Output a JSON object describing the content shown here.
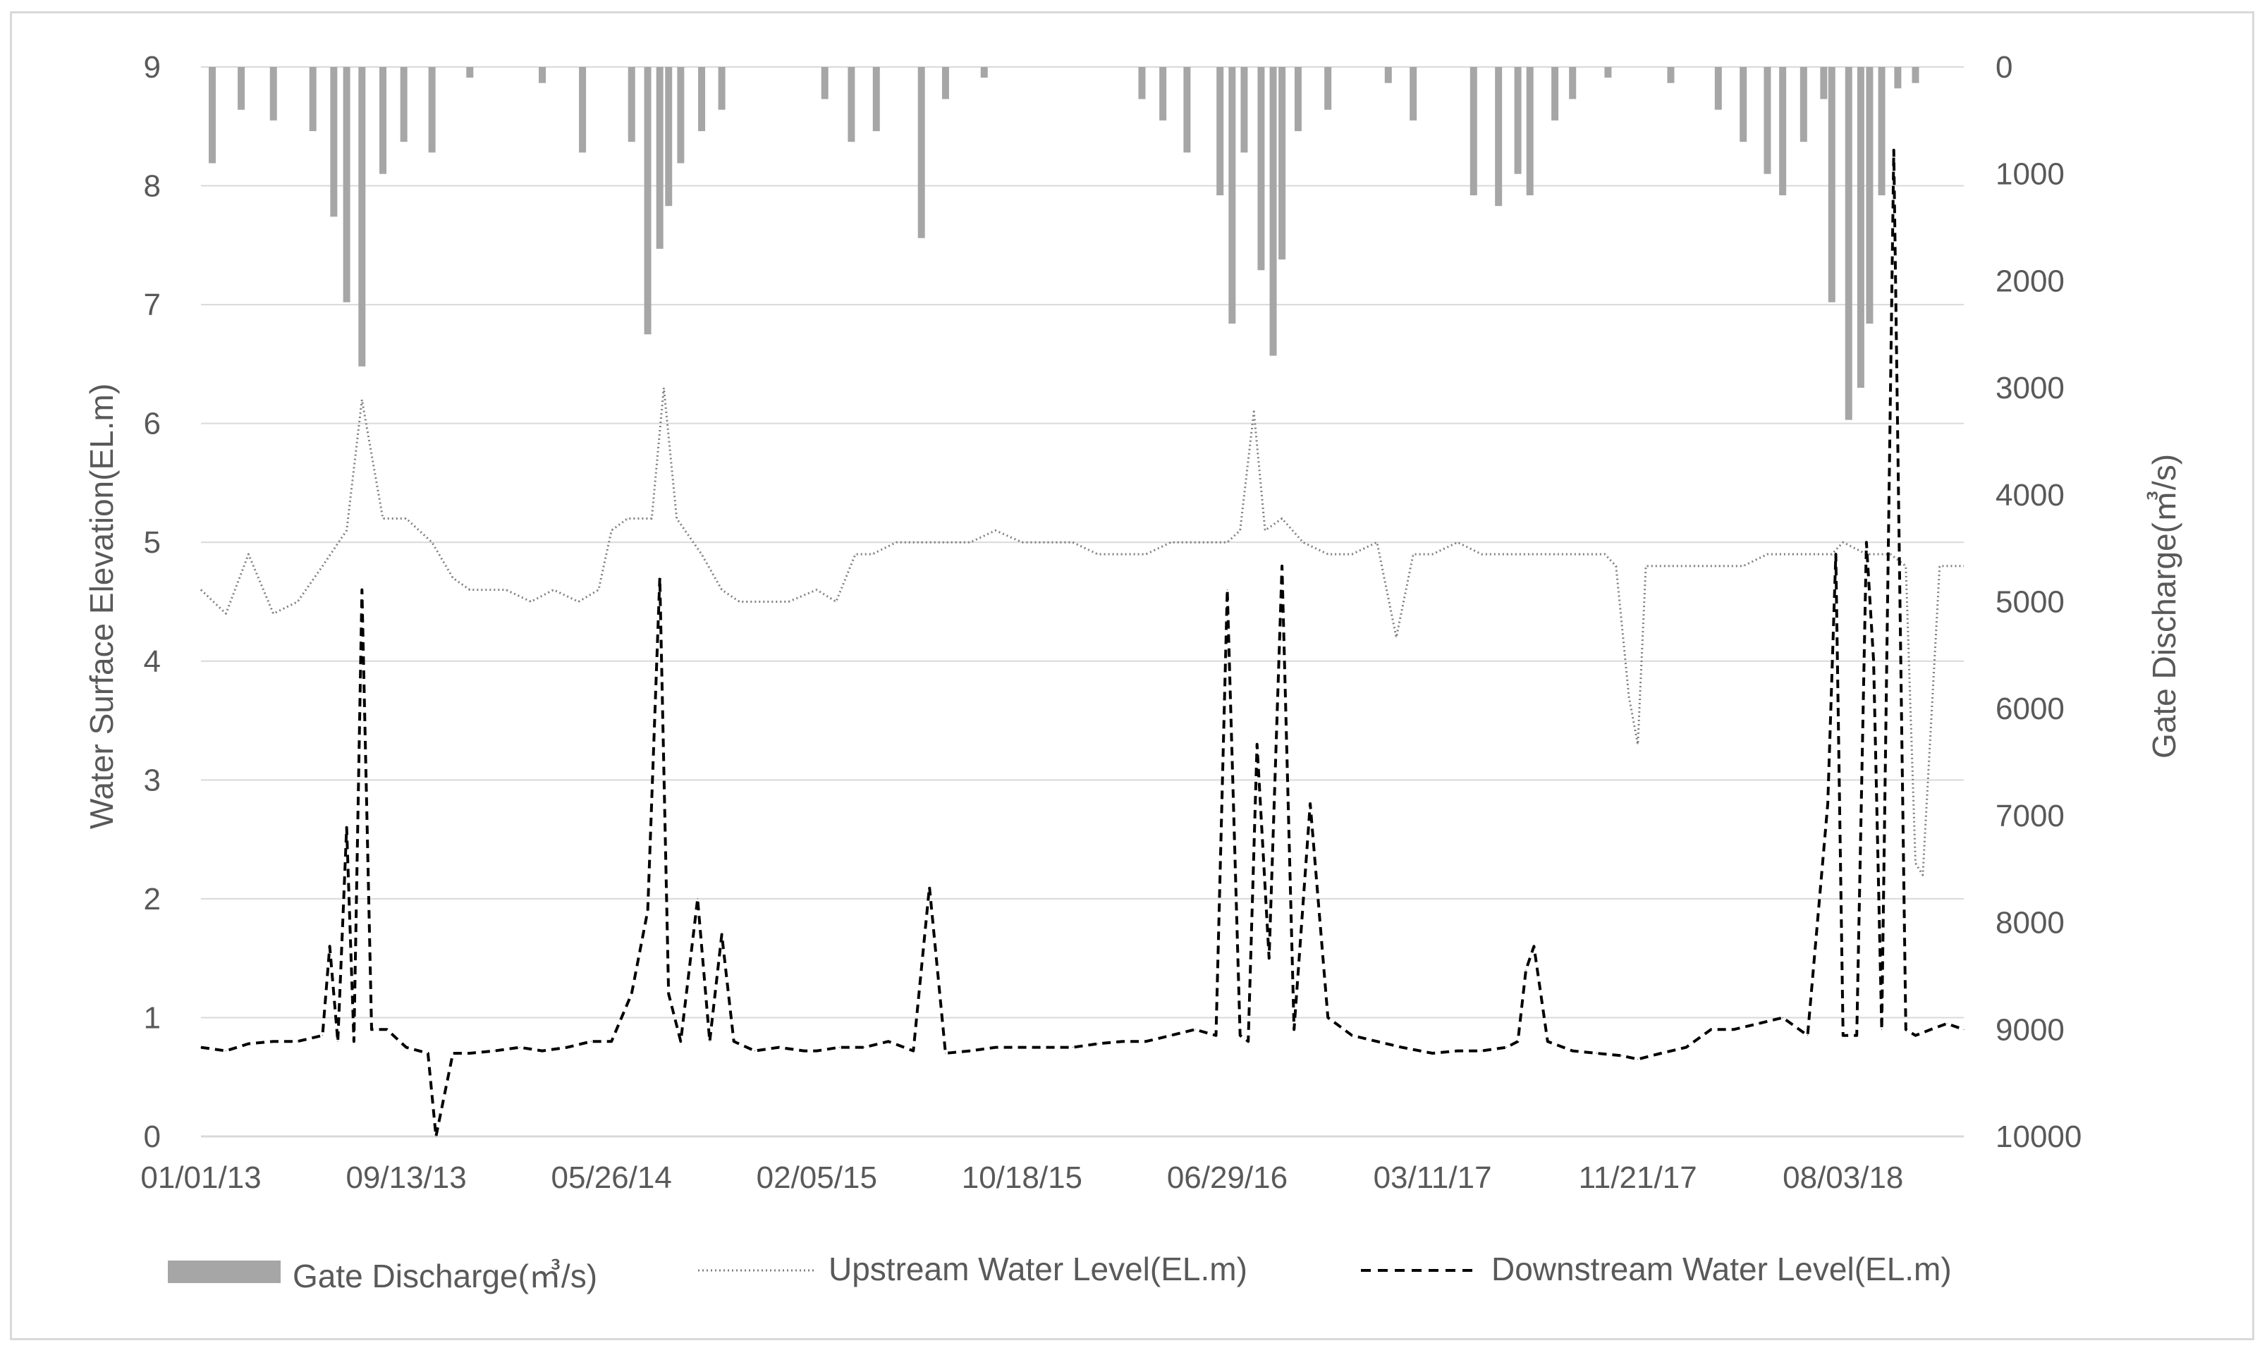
{
  "chart_data": {
    "type": "combo",
    "title": "",
    "x_dates": [
      "2013-01-01",
      "2013-09-13",
      "2014-05-26",
      "2015-02-05",
      "2015-10-18",
      "2016-06-29",
      "2017-03-11",
      "2017-11-21",
      "2018-08-03"
    ],
    "x_tick_labels": [
      "01/01/13",
      "09/13/13",
      "05/26/14",
      "02/05/15",
      "10/18/15",
      "06/29/16",
      "03/11/17",
      "11/21/17",
      "08/03/18"
    ],
    "x_range": [
      "2013-01-01",
      "2018-12-31"
    ],
    "ylabel_left": "Water Surface Elevation(EL.m)",
    "ylabel_right": "Gate Discharge(㎥/s)",
    "ylim_left": [
      0,
      9
    ],
    "ylim_right": [
      0,
      10000
    ],
    "right_axis_reversed": true,
    "y_left_ticks": [
      "0",
      "1",
      "2",
      "3",
      "4",
      "5",
      "6",
      "7",
      "8",
      "9"
    ],
    "y_right_ticks": [
      "0",
      "1000",
      "2000",
      "3000",
      "4000",
      "5000",
      "6000",
      "7000",
      "8000",
      "9000",
      "10000"
    ],
    "grid": true,
    "legend_position": "bottom",
    "colors": {
      "discharge": "#a6a6a6",
      "upstream": "#7f7f7f",
      "downstream": "#000000",
      "grid": "#d9d9d9",
      "text": "#595959"
    },
    "series": [
      {
        "name": "Gate Discharge(㎥/s)",
        "type": "bar",
        "axis": "right",
        "x": [
          "2013-01-15",
          "2013-02-20",
          "2013-04-01",
          "2013-05-20",
          "2013-06-15",
          "2013-07-01",
          "2013-07-20",
          "2013-08-15",
          "2013-09-10",
          "2013-10-15",
          "2013-12-01",
          "2014-03-01",
          "2014-04-20",
          "2014-06-20",
          "2014-07-10",
          "2014-07-25",
          "2014-08-05",
          "2014-08-20",
          "2014-09-15",
          "2014-10-10",
          "2015-02-15",
          "2015-03-20",
          "2015-04-20",
          "2015-06-15",
          "2015-07-15",
          "2015-09-01",
          "2016-03-15",
          "2016-04-10",
          "2016-05-10",
          "2016-06-20",
          "2016-07-05",
          "2016-07-20",
          "2016-08-10",
          "2016-08-25",
          "2016-09-05",
          "2016-09-25",
          "2016-11-01",
          "2017-01-15",
          "2017-02-15",
          "2017-05-01",
          "2017-06-01",
          "2017-06-25",
          "2017-07-10",
          "2017-08-10",
          "2017-09-01",
          "2017-10-15",
          "2018-01-01",
          "2018-03-01",
          "2018-04-01",
          "2018-05-01",
          "2018-05-20",
          "2018-06-15",
          "2018-07-10",
          "2018-07-20",
          "2018-08-10",
          "2018-08-25",
          "2018-09-05",
          "2018-09-20",
          "2018-10-10",
          "2018-11-01"
        ],
        "values": [
          900,
          400,
          500,
          600,
          1400,
          2200,
          2800,
          1000,
          700,
          800,
          100,
          150,
          800,
          700,
          2500,
          1700,
          1300,
          900,
          600,
          400,
          300,
          700,
          600,
          1600,
          300,
          100,
          300,
          500,
          800,
          1200,
          2400,
          800,
          1900,
          2700,
          1800,
          600,
          400,
          150,
          500,
          1200,
          1300,
          1000,
          1200,
          500,
          300,
          100,
          150,
          400,
          700,
          1000,
          1200,
          700,
          300,
          2200,
          3300,
          3000,
          2400,
          1200,
          200,
          150
        ]
      },
      {
        "name": "Upstream Water Level(EL.m)",
        "type": "line",
        "axis": "left",
        "dash": "dotted",
        "x": [
          "2013-01-01",
          "2013-02-01",
          "2013-03-01",
          "2013-04-01",
          "2013-05-01",
          "2013-06-01",
          "2013-07-01",
          "2013-07-20",
          "2013-08-15",
          "2013-09-13",
          "2013-10-15",
          "2013-11-10",
          "2013-12-01",
          "2014-01-15",
          "2014-02-15",
          "2014-03-15",
          "2014-04-15",
          "2014-05-10",
          "2014-05-26",
          "2014-06-15",
          "2014-07-15",
          "2014-07-30",
          "2014-08-15",
          "2014-09-15",
          "2014-10-10",
          "2014-11-01",
          "2014-12-01",
          "2015-01-01",
          "2015-02-05",
          "2015-03-01",
          "2015-03-25",
          "2015-04-15",
          "2015-05-15",
          "2015-06-15",
          "2015-07-15",
          "2015-08-15",
          "2015-09-15",
          "2015-10-18",
          "2015-11-20",
          "2015-12-20",
          "2016-01-20",
          "2016-02-20",
          "2016-03-20",
          "2016-04-20",
          "2016-05-20",
          "2016-06-29",
          "2016-07-15",
          "2016-08-01",
          "2016-08-15",
          "2016-09-05",
          "2016-10-01",
          "2016-11-01",
          "2016-12-01",
          "2017-01-01",
          "2017-01-25",
          "2017-02-15",
          "2017-03-11",
          "2017-04-11",
          "2017-05-11",
          "2017-06-11",
          "2017-07-11",
          "2017-08-11",
          "2017-09-11",
          "2017-10-11",
          "2017-10-25",
          "2017-11-10",
          "2017-11-21",
          "2017-12-01",
          "2018-01-01",
          "2018-02-01",
          "2018-03-01",
          "2018-04-01",
          "2018-05-01",
          "2018-06-01",
          "2018-07-01",
          "2018-07-20",
          "2018-08-03",
          "2018-09-01",
          "2018-10-01",
          "2018-10-20",
          "2018-11-01",
          "2018-11-10",
          "2018-12-01",
          "2018-12-31"
        ],
        "values": [
          4.6,
          4.4,
          4.9,
          4.4,
          4.5,
          4.8,
          5.1,
          6.2,
          5.2,
          5.2,
          5.0,
          4.7,
          4.6,
          4.6,
          4.5,
          4.6,
          4.5,
          4.6,
          5.1,
          5.2,
          5.2,
          6.3,
          5.2,
          4.9,
          4.6,
          4.5,
          4.5,
          4.5,
          4.6,
          4.5,
          4.9,
          4.9,
          5.0,
          5.0,
          5.0,
          5.0,
          5.1,
          5.0,
          5.0,
          5.0,
          4.9,
          4.9,
          4.9,
          5.0,
          5.0,
          5.0,
          5.1,
          6.1,
          5.1,
          5.2,
          5.0,
          4.9,
          4.9,
          5.0,
          4.2,
          4.9,
          4.9,
          5.0,
          4.9,
          4.9,
          4.9,
          4.9,
          4.9,
          4.9,
          4.8,
          3.7,
          3.3,
          4.8,
          4.8,
          4.8,
          4.8,
          4.8,
          4.9,
          4.9,
          4.9,
          4.9,
          5.0,
          4.9,
          4.9,
          4.8,
          2.3,
          2.2,
          4.8,
          4.8
        ]
      },
      {
        "name": "Downstream Water Level(EL.m)",
        "type": "line",
        "axis": "left",
        "dash": "dashed",
        "x": [
          "2013-01-01",
          "2013-02-01",
          "2013-03-01",
          "2013-04-01",
          "2013-05-01",
          "2013-06-01",
          "2013-06-10",
          "2013-06-20",
          "2013-07-01",
          "2013-07-10",
          "2013-07-20",
          "2013-08-01",
          "2013-08-20",
          "2013-09-13",
          "2013-10-10",
          "2013-10-20",
          "2013-11-10",
          "2013-12-01",
          "2014-01-01",
          "2014-02-01",
          "2014-03-01",
          "2014-04-01",
          "2014-05-01",
          "2014-05-26",
          "2014-06-20",
          "2014-07-10",
          "2014-07-25",
          "2014-08-05",
          "2014-08-20",
          "2014-09-10",
          "2014-09-25",
          "2014-10-10",
          "2014-10-25",
          "2014-11-20",
          "2014-12-20",
          "2015-01-20",
          "2015-02-05",
          "2015-03-05",
          "2015-04-05",
          "2015-05-05",
          "2015-06-05",
          "2015-06-25",
          "2015-07-15",
          "2015-08-15",
          "2015-09-15",
          "2015-10-18",
          "2015-11-20",
          "2015-12-20",
          "2016-01-20",
          "2016-02-20",
          "2016-03-20",
          "2016-04-20",
          "2016-05-20",
          "2016-06-15",
          "2016-06-29",
          "2016-07-15",
          "2016-07-25",
          "2016-08-05",
          "2016-08-20",
          "2016-09-05",
          "2016-09-20",
          "2016-10-10",
          "2016-11-01",
          "2016-12-01",
          "2017-01-01",
          "2017-02-01",
          "2017-03-11",
          "2017-04-11",
          "2017-05-11",
          "2017-06-11",
          "2017-06-25",
          "2017-07-05",
          "2017-07-15",
          "2017-08-01",
          "2017-09-01",
          "2017-10-01",
          "2017-11-01",
          "2017-11-21",
          "2017-12-20",
          "2018-01-20",
          "2018-02-20",
          "2018-03-20",
          "2018-04-20",
          "2018-05-20",
          "2018-06-20",
          "2018-07-15",
          "2018-07-25",
          "2018-08-03",
          "2018-08-20",
          "2018-09-01",
          "2018-09-10",
          "2018-09-20",
          "2018-10-05",
          "2018-10-20",
          "2018-11-01",
          "2018-11-20",
          "2018-12-10",
          "2018-12-31"
        ],
        "values": [
          0.75,
          0.72,
          0.78,
          0.8,
          0.8,
          0.85,
          1.6,
          0.8,
          2.6,
          0.8,
          4.6,
          0.9,
          0.9,
          0.75,
          0.7,
          0.0,
          0.7,
          0.7,
          0.72,
          0.75,
          0.72,
          0.75,
          0.8,
          0.8,
          1.2,
          1.9,
          4.7,
          1.2,
          0.8,
          2.0,
          0.8,
          1.7,
          0.8,
          0.72,
          0.75,
          0.72,
          0.72,
          0.75,
          0.75,
          0.8,
          0.72,
          2.1,
          0.7,
          0.72,
          0.75,
          0.75,
          0.75,
          0.75,
          0.78,
          0.8,
          0.8,
          0.85,
          0.9,
          0.85,
          4.6,
          0.85,
          0.8,
          3.3,
          1.5,
          4.8,
          0.9,
          2.8,
          1.0,
          0.85,
          0.8,
          0.75,
          0.7,
          0.72,
          0.72,
          0.75,
          0.8,
          1.4,
          1.6,
          0.8,
          0.72,
          0.7,
          0.68,
          0.65,
          0.7,
          0.75,
          0.9,
          0.9,
          0.95,
          1.0,
          0.85,
          2.8,
          4.9,
          0.85,
          0.85,
          5.0,
          4.0,
          0.9,
          8.3,
          0.9,
          0.85,
          0.9,
          0.95,
          0.9
        ]
      }
    ],
    "legend": [
      {
        "label": "Gate Discharge(㎥/s)",
        "marker": "bar-swatch"
      },
      {
        "label": "Upstream Water Level(EL.m)",
        "marker": "dotted-line"
      },
      {
        "label": "Downstream Water Level(EL.m)",
        "marker": "dashed-line"
      }
    ]
  }
}
